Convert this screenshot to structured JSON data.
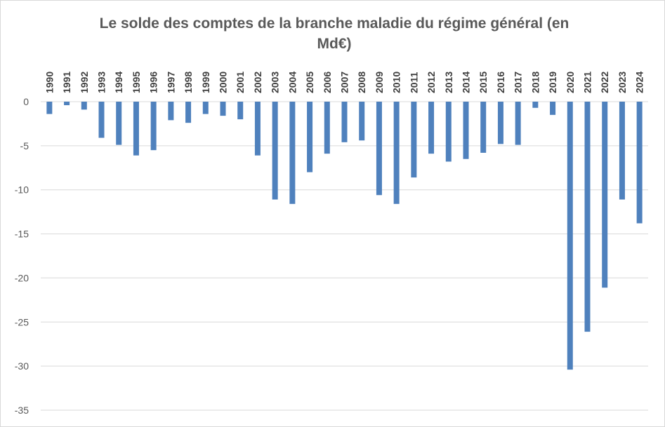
{
  "chart_data": {
    "type": "bar",
    "title": "Le solde des comptes de la branche maladie du régime général (en Md€)",
    "xlabel": "",
    "ylabel": "",
    "ylim": [
      -35,
      0
    ],
    "yticks": [
      0,
      -5,
      -10,
      -15,
      -20,
      -25,
      -30,
      -35
    ],
    "grid": true,
    "legend": "none",
    "bar_color": "#4f81bd",
    "gridline_color": "#d9d9d9",
    "categories": [
      "1990",
      "1991",
      "1992",
      "1993",
      "1994",
      "1995",
      "1996",
      "1997",
      "1998",
      "1999",
      "2000",
      "2001",
      "2002",
      "2003",
      "2004",
      "2005",
      "2006",
      "2007",
      "2008",
      "2009",
      "2010",
      "2011",
      "2012",
      "2013",
      "2014",
      "2015",
      "2016",
      "2017",
      "2018",
      "2019",
      "2020",
      "2021",
      "2022",
      "2023",
      "2024"
    ],
    "values": [
      -1.4,
      -0.4,
      -0.9,
      -4.1,
      -4.9,
      -6.1,
      -5.5,
      -2.1,
      -2.4,
      -1.4,
      -1.6,
      -2.0,
      -6.1,
      -11.1,
      -11.6,
      -8.0,
      -5.9,
      -4.6,
      -4.4,
      -10.6,
      -11.6,
      -8.6,
      -5.9,
      -6.8,
      -6.5,
      -5.8,
      -4.8,
      -4.9,
      -0.7,
      -1.5,
      -30.4,
      -26.1,
      -21.1,
      -11.1,
      -13.8
    ]
  }
}
